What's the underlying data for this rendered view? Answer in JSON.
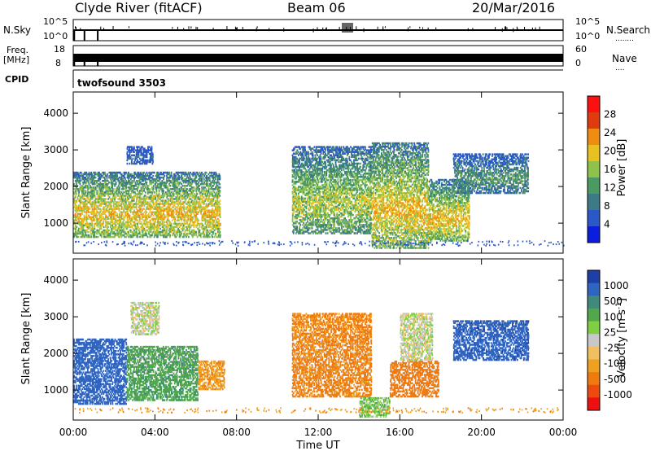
{
  "header": {
    "title": "Clyde River (fitACF)",
    "beam": "Beam 06",
    "date": "20/Mar/2016"
  },
  "strip_nsky": {
    "left_label": "N.Sky",
    "y_tick_top": "10^5",
    "y_tick_bottom": "10^0",
    "right_tick_top": "10^5",
    "right_tick_bottom": "10^0",
    "right_label": "N.Search",
    "right_label_dots": "........"
  },
  "strip_freq": {
    "left_label_line1": "Freq.",
    "left_label_line2": "[MHz]",
    "y_tick_top": "18",
    "y_tick_bottom": "8",
    "right_tick_top": "60",
    "right_tick_bottom": "0",
    "right_label": "Nave",
    "right_label_dots": "...."
  },
  "strip_cpid": {
    "left_label": "CPID",
    "program": "twofsound 3503"
  },
  "chart_data": [
    {
      "type": "heatmap",
      "title": "",
      "xlabel": "",
      "ylabel": "Slant Range [km]",
      "x_ticks": [
        "00:00",
        "04:00",
        "08:00",
        "12:00",
        "16:00",
        "20:00",
        "00:00"
      ],
      "y_ticks": [
        "1000",
        "2000",
        "3000",
        "4000"
      ],
      "ylim": [
        180,
        4580
      ],
      "xlim_hours": [
        0,
        24
      ],
      "colorbar": {
        "label": "Power [dB]",
        "ticks": [
          "4",
          "8",
          "12",
          "16",
          "20",
          "24",
          "28"
        ],
        "range": [
          0,
          32
        ],
        "colors": [
          "#0b1ee0",
          "#2a58c8",
          "#3b7a86",
          "#4a9a62",
          "#8fc24a",
          "#e8c020",
          "#f08c10",
          "#e03a0e",
          "#ff1010"
        ]
      },
      "echo_regions": [
        {
          "t0": 0.0,
          "t1": 7.2,
          "r0": 600,
          "r1": 2400,
          "peak_db": 26
        },
        {
          "t0": 2.6,
          "t1": 3.9,
          "r0": 2600,
          "r1": 3100,
          "peak_db": 10
        },
        {
          "t0": 10.7,
          "t1": 14.6,
          "r0": 700,
          "r1": 3100,
          "peak_db": 22
        },
        {
          "t0": 14.6,
          "t1": 17.4,
          "r0": 300,
          "r1": 3200,
          "peak_db": 26
        },
        {
          "t0": 17.4,
          "t1": 19.4,
          "r0": 500,
          "r1": 2200,
          "peak_db": 26
        },
        {
          "t0": 18.6,
          "t1": 22.3,
          "r0": 1800,
          "r1": 2900,
          "peak_db": 16
        }
      ]
    },
    {
      "type": "heatmap",
      "title": "",
      "xlabel": "Time UT",
      "ylabel": "Slant Range [km]",
      "x_ticks": [
        "00:00",
        "04:00",
        "08:00",
        "12:00",
        "16:00",
        "20:00",
        "00:00"
      ],
      "y_ticks": [
        "1000",
        "2000",
        "3000",
        "4000"
      ],
      "ylim": [
        180,
        4580
      ],
      "xlim_hours": [
        0,
        24
      ],
      "colorbar": {
        "label": "Velocity [m s^-1]",
        "ticks": [
          "1000",
          "500",
          "100",
          "25",
          "-25",
          "-100",
          "-500",
          "-1000"
        ],
        "colors": [
          "#1e3ea8",
          "#2f64c0",
          "#3f8a7a",
          "#50a84a",
          "#7ed040",
          "#c8c8c8",
          "#f0c060",
          "#f0a020",
          "#ef7a10",
          "#ee4a10",
          "#ee1010"
        ]
      },
      "echo_regions": [
        {
          "t0": 0.0,
          "t1": 2.6,
          "r0": 600,
          "r1": 2400,
          "velocity": 600
        },
        {
          "t0": 2.6,
          "t1": 6.1,
          "r0": 700,
          "r1": 2200,
          "velocity": 150
        },
        {
          "t0": 2.8,
          "t1": 4.2,
          "r0": 2500,
          "r1": 3400,
          "velocity": 0
        },
        {
          "t0": 6.1,
          "t1": 7.4,
          "r0": 1000,
          "r1": 1800,
          "velocity": -150
        },
        {
          "t0": 10.7,
          "t1": 14.6,
          "r0": 800,
          "r1": 3100,
          "velocity": -200
        },
        {
          "t0": 14.0,
          "t1": 15.5,
          "r0": 250,
          "r1": 800,
          "velocity": 60
        },
        {
          "t0": 15.5,
          "t1": 17.9,
          "r0": 800,
          "r1": 1800,
          "velocity": -300
        },
        {
          "t0": 16.0,
          "t1": 17.6,
          "r0": 1800,
          "r1": 3100,
          "velocity": 0
        },
        {
          "t0": 18.6,
          "t1": 22.3,
          "r0": 1800,
          "r1": 2900,
          "velocity": 700
        }
      ]
    }
  ]
}
